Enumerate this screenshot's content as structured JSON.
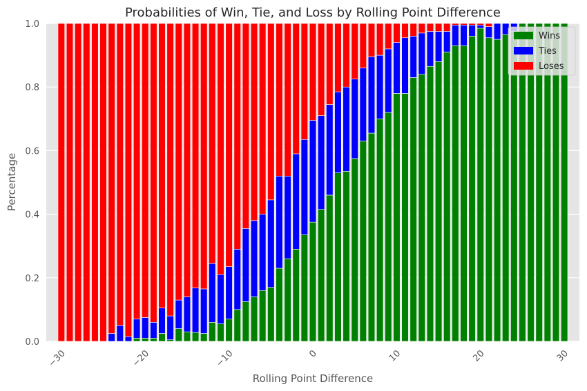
{
  "chart_data": {
    "type": "bar",
    "stacked": true,
    "title": "Probabilities of Win, Tie, and Loss by Rolling Point Difference",
    "xlabel": "Rolling Point Difference",
    "ylabel": "Percentage",
    "xlim": [
      -31.8,
      31.8
    ],
    "ylim": [
      0,
      1
    ],
    "grid": true,
    "legend_position": "top-right",
    "x": [
      -30,
      -29,
      -28,
      -27,
      -26,
      -25,
      -24,
      -23,
      -22,
      -21,
      -20,
      -19,
      -18,
      -17,
      -16,
      -15,
      -14,
      -13,
      -12,
      -11,
      -10,
      -9,
      -8,
      -7,
      -6,
      -5,
      -4,
      -3,
      -2,
      -1,
      0,
      1,
      2,
      3,
      4,
      5,
      6,
      7,
      8,
      9,
      10,
      11,
      12,
      13,
      14,
      15,
      16,
      17,
      18,
      19,
      20,
      21,
      22,
      23,
      24,
      25,
      26,
      27,
      28,
      29,
      30
    ],
    "x_ticks": [
      -30,
      -20,
      -10,
      0,
      10,
      20,
      30
    ],
    "x_tick_labels": [
      "−30",
      "−20",
      "−10",
      "0",
      "10",
      "20",
      "30"
    ],
    "y_ticks": [
      0,
      0.2,
      0.4,
      0.6,
      0.8,
      1.0
    ],
    "y_tick_labels": [
      "0.0",
      "0.2",
      "0.4",
      "0.6",
      "0.8",
      "1.0"
    ],
    "series": [
      {
        "name": "Wins",
        "color": "#008000",
        "values": [
          0,
          0,
          0,
          0,
          0,
          0,
          0,
          0,
          0,
          0.01,
          0.01,
          0.01,
          0.025,
          0.005,
          0.04,
          0.03,
          0.028,
          0.025,
          0.06,
          0.055,
          0.07,
          0.1,
          0.125,
          0.14,
          0.16,
          0.17,
          0.23,
          0.26,
          0.29,
          0.335,
          0.375,
          0.415,
          0.46,
          0.53,
          0.535,
          0.575,
          0.63,
          0.655,
          0.7,
          0.72,
          0.78,
          0.78,
          0.83,
          0.84,
          0.865,
          0.88,
          0.91,
          0.93,
          0.93,
          0.96,
          0.985,
          0.955,
          0.95,
          0.965,
          0.975,
          1,
          1,
          1,
          1,
          1,
          1
        ]
      },
      {
        "name": "Ties",
        "color": "#0000ff",
        "values": [
          0,
          0,
          0,
          0,
          0,
          0,
          0.025,
          0.05,
          0.015,
          0.06,
          0.065,
          0.05,
          0.08,
          0.075,
          0.09,
          0.11,
          0.14,
          0.14,
          0.185,
          0.155,
          0.165,
          0.19,
          0.23,
          0.24,
          0.24,
          0.275,
          0.29,
          0.26,
          0.3,
          0.3,
          0.32,
          0.295,
          0.285,
          0.255,
          0.265,
          0.25,
          0.23,
          0.24,
          0.2,
          0.2,
          0.16,
          0.175,
          0.13,
          0.13,
          0.11,
          0.095,
          0.065,
          0.065,
          0.065,
          0.035,
          0.01,
          0.035,
          0.05,
          0.035,
          0.025,
          0,
          0,
          0,
          0,
          0,
          0
        ]
      },
      {
        "name": "Loses",
        "color": "#ff0000",
        "values": [
          1,
          1,
          1,
          1,
          1,
          1,
          0.975,
          0.95,
          0.985,
          0.93,
          0.925,
          0.94,
          0.895,
          0.92,
          0.87,
          0.86,
          0.832,
          0.835,
          0.755,
          0.79,
          0.765,
          0.71,
          0.645,
          0.62,
          0.6,
          0.555,
          0.48,
          0.48,
          0.41,
          0.365,
          0.305,
          0.29,
          0.255,
          0.215,
          0.2,
          0.175,
          0.14,
          0.105,
          0.1,
          0.08,
          0.06,
          0.045,
          0.04,
          0.03,
          0.025,
          0.025,
          0.025,
          0.005,
          0.005,
          0.005,
          0.005,
          0.01,
          0,
          0,
          0,
          0,
          0,
          0,
          0,
          0,
          0
        ]
      }
    ]
  }
}
